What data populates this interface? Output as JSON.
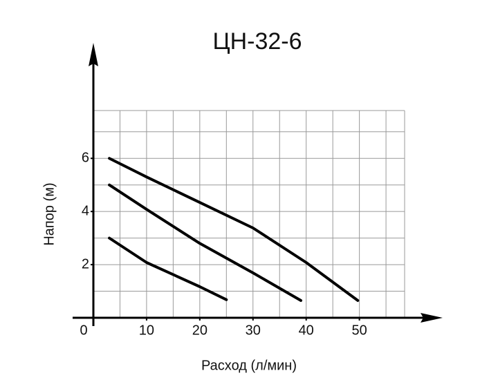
{
  "chart_data": {
    "type": "line",
    "title": "ЦН-32-6",
    "x_label": "Расход (л/мин)",
    "y_label": "Напор (м)",
    "series": [
      {
        "color": "#000000",
        "x": [
          3,
          10,
          20,
          30,
          40,
          49.7
        ],
        "values": [
          6,
          5.3,
          4.34,
          3.38,
          2.08,
          0.65
        ]
      },
      {
        "color": "#000000",
        "x": [
          3,
          10,
          20,
          30,
          39
        ],
        "values": [
          5,
          4.08,
          2.8,
          1.69,
          0.65
        ]
      },
      {
        "color": "#000000",
        "x": [
          3,
          10,
          20,
          25
        ],
        "values": [
          3,
          2.08,
          1.17,
          0.68
        ]
      }
    ],
    "xlim": [
      0,
      58.5
    ],
    "ylim": [
      0,
      7.8
    ],
    "xticks": [
      0,
      10,
      20,
      30,
      40,
      50
    ],
    "yticks": [
      2,
      4,
      6
    ],
    "xgrid": [
      5,
      10,
      15,
      20,
      25,
      30,
      35,
      40,
      45,
      50,
      55
    ],
    "ygrid": [
      1,
      2,
      3,
      4,
      5,
      6,
      7
    ],
    "grid": true
  }
}
